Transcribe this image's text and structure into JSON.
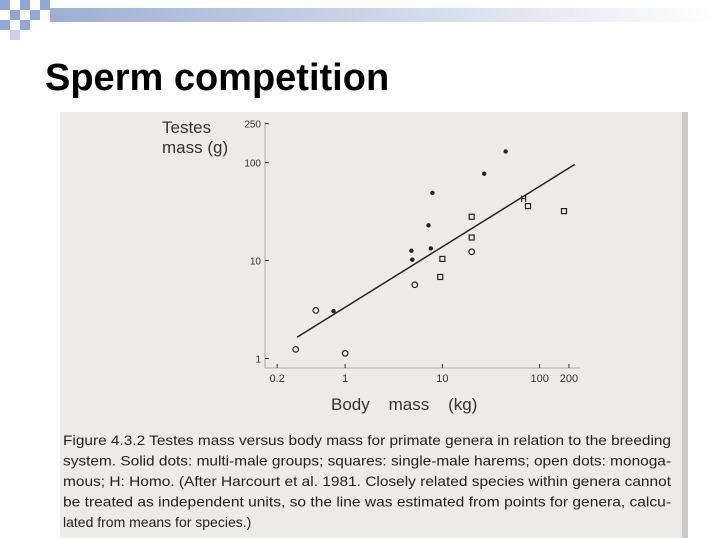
{
  "slide_title": "Sperm competition",
  "chart_data": {
    "type": "scatter",
    "ylabel": [
      "Testes",
      "mass (g)"
    ],
    "xlabel": "Body    mass    (kg)",
    "log_x": true,
    "log_y": true,
    "xlim": [
      0.15,
      260
    ],
    "ylim": [
      0.8,
      260
    ],
    "xticks": [
      0.2,
      1,
      10,
      100,
      200
    ],
    "yticks": [
      1,
      10,
      100,
      250
    ],
    "series": [
      {
        "marker": "dot",
        "color": "#222222",
        "x": [
          0.76,
          4.8,
          7.6,
          4.9,
          7.2,
          7.9,
          26.9,
          44.7
        ],
        "values": [
          3.05,
          12.6,
          13.3,
          10.2,
          22.9,
          49,
          77,
          130
        ]
      },
      {
        "marker": "square",
        "color": "#222222",
        "x": [
          10,
          9.5,
          20,
          20,
          75.9,
          178
        ],
        "values": [
          10.4,
          6.8,
          28,
          17.2,
          36,
          32
        ]
      },
      {
        "marker": "circle",
        "color": "#222222",
        "x": [
          0.31,
          0.5,
          1,
          5.2,
          20
        ],
        "values": [
          1.24,
          3.1,
          1.13,
          5.66,
          12.3
        ]
      }
    ],
    "fit": {
      "x": [
        0.32,
        230
      ],
      "values": [
        1.65,
        96
      ]
    },
    "annotations": [
      {
        "text": "H",
        "x": 68,
        "y": 42.5
      }
    ]
  },
  "caption": [
    "Figure 4.3.2 Testes mass versus body mass for primate genera in relation to the breeding",
    "system. Solid dots: multi-male groups; squares: single-male harems; open dots: monoga-",
    "mous; H: Homo. (After Harcourt et al. 1981. Closely related species within genera cannot",
    "be treated as independent units, so the line was estimated from points for genera, calcu-",
    "lated from means for species.)"
  ]
}
